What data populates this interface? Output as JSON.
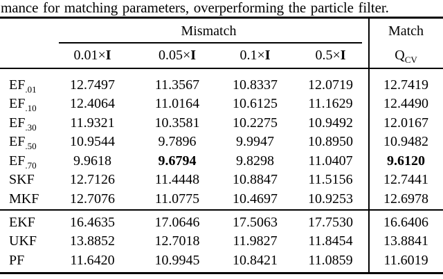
{
  "caption": "mance for matching parameters, overperforming the particle filter.",
  "table": {
    "span_headers": [
      "Mismatch",
      "Match"
    ],
    "col_headers": [
      {
        "num": "0.01",
        "times": "×",
        "mat": "I"
      },
      {
        "num": "0.05",
        "times": "×",
        "mat": "I"
      },
      {
        "num": "0.1",
        "times": "×",
        "mat": "I"
      },
      {
        "num": "0.5",
        "times": "×",
        "mat": "I"
      }
    ],
    "match_header": {
      "base": "Q",
      "sub": "CV"
    },
    "rows_group1": [
      {
        "label": "EF",
        "sub": ".01",
        "values": [
          "12.7497",
          "11.3567",
          "10.8337",
          "12.0719",
          "12.7419"
        ],
        "bold": []
      },
      {
        "label": "EF",
        "sub": ".10",
        "values": [
          "12.4064",
          "11.0164",
          "10.6125",
          "11.1629",
          "12.4490"
        ],
        "bold": []
      },
      {
        "label": "EF",
        "sub": ".30",
        "values": [
          "11.9321",
          "10.3581",
          "10.2275",
          "10.9492",
          "12.0167"
        ],
        "bold": []
      },
      {
        "label": "EF",
        "sub": ".50",
        "values": [
          "10.9544",
          "9.7896",
          "9.9947",
          "10.8950",
          "10.9482"
        ],
        "bold": []
      },
      {
        "label": "EF",
        "sub": ".70",
        "values": [
          "9.9618",
          "9.6794",
          "9.8298",
          "11.0407",
          "9.6120"
        ],
        "bold": [
          1,
          4
        ]
      },
      {
        "label": "SKF",
        "sub": "",
        "values": [
          "12.7126",
          "11.4448",
          "10.8847",
          "11.5156",
          "12.7441"
        ],
        "bold": []
      },
      {
        "label": "MKF",
        "sub": "",
        "values": [
          "12.7076",
          "11.0775",
          "10.4697",
          "10.9253",
          "12.6978"
        ],
        "bold": []
      }
    ],
    "rows_group2": [
      {
        "label": "EKF",
        "sub": "",
        "values": [
          "16.4635",
          "17.0646",
          "17.5063",
          "17.7530",
          "16.6406"
        ],
        "bold": []
      },
      {
        "label": "UKF",
        "sub": "",
        "values": [
          "13.8852",
          "12.7018",
          "11.9827",
          "11.8454",
          "13.8841"
        ],
        "bold": []
      },
      {
        "label": "PF",
        "sub": "",
        "values": [
          "11.6420",
          "10.9945",
          "10.8421",
          "11.0859",
          "11.6019"
        ],
        "bold": []
      }
    ],
    "colors": {
      "text": "#000000",
      "background": "#ffffff"
    }
  }
}
